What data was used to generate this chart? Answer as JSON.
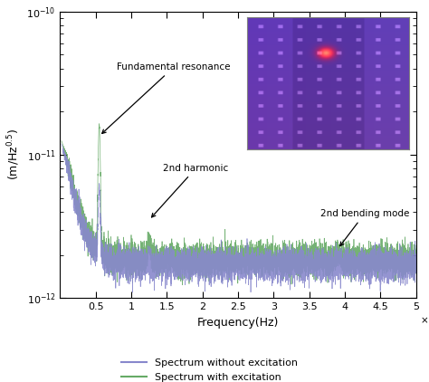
{
  "xlim": [
    0,
    50000
  ],
  "ylim": [
    1e-12,
    1e-10
  ],
  "xlabel": "Frequency(Hz)",
  "ylabel_display": "(m/Hz$^{0.5}$)",
  "xticks": [
    5000,
    10000,
    15000,
    20000,
    25000,
    30000,
    35000,
    40000,
    45000,
    50000
  ],
  "xtick_labels": [
    "0.5",
    "1",
    "1.5",
    "2",
    "2.5",
    "3",
    "3.5",
    "4",
    "4.5",
    "5"
  ],
  "legend_labels": [
    "Spectrum without excitation",
    "Spectrum with excitation"
  ],
  "blue_color": "#8888cc",
  "green_color": "#66aa66",
  "background_color": "#ffffff",
  "fundamental_freq": 5500,
  "harmonic_freq": 12500,
  "bending_freq": 39000,
  "noise_floor": 2e-12,
  "seed": 12345
}
